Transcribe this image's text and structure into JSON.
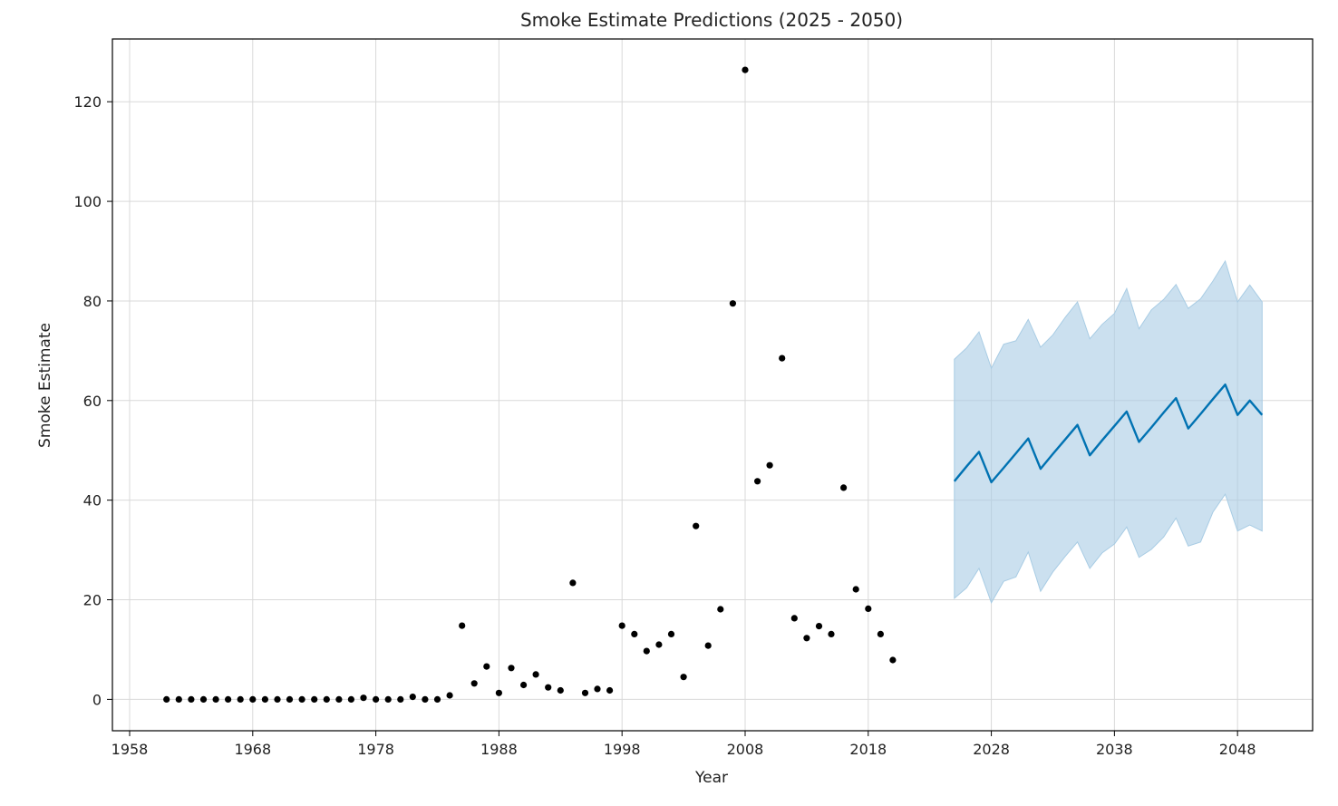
{
  "chart_data": {
    "type": "scatter",
    "title": "Smoke Estimate Predictions (2025 - 2050)",
    "xlabel": "Year",
    "ylabel": "Smoke Estimate",
    "xlim": [
      1956.6,
      2054.1
    ],
    "ylim": [
      -6.3,
      132.6
    ],
    "xticks": [
      1958,
      1968,
      1978,
      1988,
      1998,
      2008,
      2018,
      2028,
      2038,
      2048
    ],
    "yticks": [
      0,
      20,
      40,
      60,
      80,
      100,
      120
    ],
    "grid": true,
    "colors": {
      "observed": "#000000",
      "forecast": "#0072b2",
      "band": "#a8cce4"
    },
    "observed": {
      "x": [
        1961,
        1962,
        1963,
        1964,
        1965,
        1966,
        1967,
        1968,
        1969,
        1970,
        1971,
        1972,
        1973,
        1974,
        1975,
        1976,
        1977,
        1978,
        1979,
        1980,
        1981,
        1982,
        1983,
        1984,
        1985,
        1986,
        1987,
        1988,
        1989,
        1990,
        1991,
        1992,
        1993,
        1994,
        1995,
        1996,
        1997,
        1998,
        1999,
        2000,
        2001,
        2002,
        2003,
        2004,
        2005,
        2006,
        2007,
        2008,
        2009,
        2010,
        2011,
        2012,
        2013,
        2014,
        2015,
        2016,
        2017,
        2018,
        2019,
        2020
      ],
      "y": [
        0,
        0,
        0,
        0,
        0,
        0,
        0,
        0,
        0,
        0,
        0,
        0,
        0,
        0,
        0,
        0,
        0.3,
        0,
        0,
        0,
        0.5,
        0,
        0,
        0.8,
        14.8,
        3.2,
        6.6,
        1.3,
        6.3,
        2.9,
        5,
        2.4,
        1.8,
        23.4,
        1.3,
        2.1,
        1.8,
        14.8,
        13.1,
        9.7,
        11,
        13.1,
        4.5,
        34.8,
        10.8,
        18.1,
        79.5,
        126.4,
        43.8,
        47,
        68.5,
        16.3,
        12.3,
        14.7,
        13.1,
        42.5,
        22.1,
        18.2,
        13.1,
        7.9
      ]
    },
    "forecast": {
      "x": [
        2025,
        2026,
        2027,
        2028,
        2029,
        2030,
        2031,
        2032,
        2033,
        2034,
        2035,
        2036,
        2037,
        2038,
        2039,
        2040,
        2041,
        2042,
        2043,
        2044,
        2045,
        2046,
        2047,
        2048,
        2049,
        2050
      ],
      "yhat": [
        43.8,
        46.8,
        49.7,
        43.6,
        46.5,
        49.4,
        52.4,
        46.3,
        49.3,
        52.2,
        55.1,
        49,
        52,
        54.9,
        57.8,
        51.7,
        54.6,
        57.6,
        60.5,
        54.4,
        57.3,
        60.3,
        63.2,
        57.1,
        60,
        57.1
      ],
      "lower": [
        20.3,
        22.4,
        26.3,
        19.4,
        23.7,
        24.6,
        29.6,
        21.7,
        25.6,
        28.7,
        31.6,
        26.3,
        29.4,
        31.2,
        34.6,
        28.5,
        30.1,
        32.6,
        36.4,
        30.8,
        31.6,
        37.6,
        41.2,
        33.8,
        35,
        33.8
      ],
      "upper": [
        68.3,
        70.6,
        73.8,
        66.5,
        71.3,
        72,
        76.3,
        70.7,
        73.2,
        76.7,
        79.8,
        72.4,
        75.3,
        77.5,
        82.5,
        74.4,
        78.2,
        80.3,
        83.3,
        78.5,
        80.4,
        84,
        88,
        79.8,
        83.2,
        79.8
      ]
    }
  }
}
